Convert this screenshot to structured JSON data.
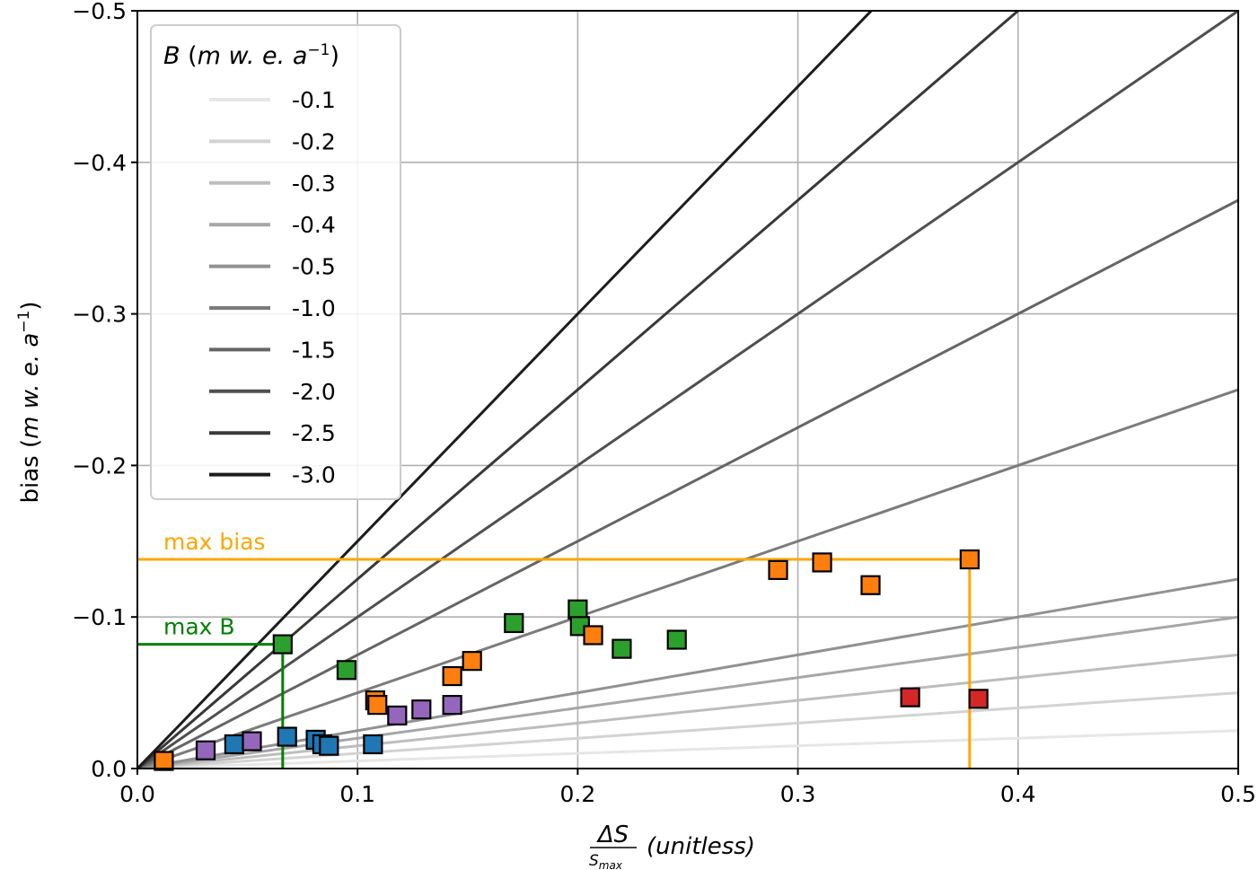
{
  "chart_data": {
    "type": "scatter",
    "xlabel_num": "ΔS",
    "xlabel_den": "S",
    "xlabel_den_sub": "max",
    "xlabel_unit": "(unitless)",
    "ylabel_prefix": "bias (",
    "ylabel_unit": "m w. e. a",
    "ylabel_exp": "−1",
    "ylabel_close": ")",
    "xlim": [
      0,
      0.5
    ],
    "ylim": [
      0,
      -0.5
    ],
    "x_ticks": [
      {
        "value": 0.0,
        "label": "0.0"
      },
      {
        "value": 0.1,
        "label": "0.1"
      },
      {
        "value": 0.2,
        "label": "0.2"
      },
      {
        "value": 0.3,
        "label": "0.3"
      },
      {
        "value": 0.4,
        "label": "0.4"
      },
      {
        "value": 0.5,
        "label": "0.5"
      }
    ],
    "y_ticks": [
      {
        "value": 0.0,
        "label": "0.0"
      },
      {
        "value": -0.1,
        "label": "−0.1"
      },
      {
        "value": -0.2,
        "label": "−0.2"
      },
      {
        "value": -0.3,
        "label": "−0.3"
      },
      {
        "value": -0.4,
        "label": "−0.4"
      },
      {
        "value": -0.5,
        "label": "−0.5"
      }
    ],
    "grid": true,
    "legend": {
      "position": "upper-left",
      "title_var": "B",
      "title_unit": "m w. e. a",
      "title_exp": "−1",
      "entries": [
        {
          "label": "-0.1",
          "B": -0.1,
          "color": "#e6e6e6"
        },
        {
          "label": "-0.2",
          "B": -0.2,
          "color": "#d3d3d3"
        },
        {
          "label": "-0.3",
          "B": -0.3,
          "color": "#bdbdbd"
        },
        {
          "label": "-0.4",
          "B": -0.4,
          "color": "#a6a6a6"
        },
        {
          "label": "-0.5",
          "B": -0.5,
          "color": "#919191"
        },
        {
          "label": "-1.0",
          "B": -1.0,
          "color": "#7b7b7b"
        },
        {
          "label": "-1.5",
          "B": -1.5,
          "color": "#656565"
        },
        {
          "label": "-2.0",
          "B": -2.0,
          "color": "#4f4f4f"
        },
        {
          "label": "-2.5",
          "B": -2.5,
          "color": "#383838"
        },
        {
          "label": "-3.0",
          "B": -3.0,
          "color": "#1c1c1c"
        }
      ]
    },
    "series": [
      {
        "color": "#1f77b4",
        "points": [
          [
            0.044,
            -0.016
          ],
          [
            0.068,
            -0.021
          ],
          [
            0.081,
            -0.019
          ],
          [
            0.084,
            -0.016
          ],
          [
            0.087,
            -0.015
          ],
          [
            0.107,
            -0.016
          ]
        ]
      },
      {
        "color": "#9467bd",
        "points": [
          [
            0.031,
            -0.012
          ],
          [
            0.052,
            -0.018
          ],
          [
            0.118,
            -0.035
          ],
          [
            0.129,
            -0.039
          ],
          [
            0.143,
            -0.042
          ]
        ]
      },
      {
        "color": "#2ca02c",
        "points": [
          [
            0.066,
            -0.082
          ],
          [
            0.095,
            -0.065
          ],
          [
            0.171,
            -0.096
          ],
          [
            0.2,
            -0.105
          ],
          [
            0.201,
            -0.094
          ],
          [
            0.22,
            -0.079
          ],
          [
            0.245,
            -0.085
          ]
        ]
      },
      {
        "color": "#ff7f0e",
        "points": [
          [
            0.012,
            -0.005
          ],
          [
            0.108,
            -0.045
          ],
          [
            0.109,
            -0.042
          ],
          [
            0.143,
            -0.061
          ],
          [
            0.152,
            -0.071
          ],
          [
            0.207,
            -0.088
          ],
          [
            0.291,
            -0.131
          ],
          [
            0.311,
            -0.136
          ],
          [
            0.333,
            -0.121
          ],
          [
            0.378,
            -0.138
          ]
        ]
      },
      {
        "color": "#d62728",
        "points": [
          [
            0.351,
            -0.047
          ],
          [
            0.382,
            -0.046
          ]
        ]
      }
    ],
    "annotations": [
      {
        "text": "max bias",
        "color": "#ffa500",
        "value": -0.138,
        "x": 0.378
      },
      {
        "text": "max B",
        "color": "#008000",
        "value": -0.082,
        "x": 0.066
      }
    ]
  }
}
